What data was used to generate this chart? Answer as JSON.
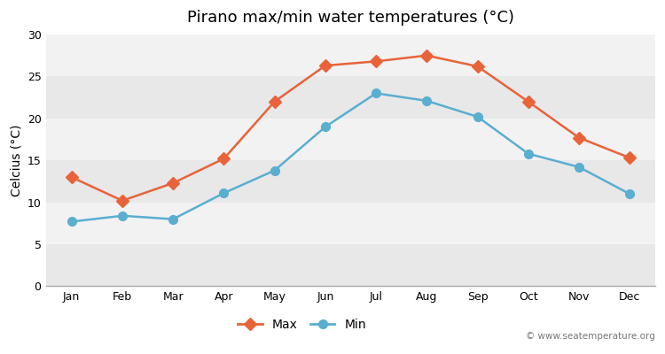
{
  "title": "Pirano max/min water temperatures (°C)",
  "ylabel": "Celcius (°C)",
  "months": [
    "Jan",
    "Feb",
    "Mar",
    "Apr",
    "May",
    "Jun",
    "Jul",
    "Aug",
    "Sep",
    "Oct",
    "Nov",
    "Dec"
  ],
  "max_values": [
    13.0,
    10.2,
    12.3,
    15.2,
    22.0,
    26.3,
    26.8,
    27.5,
    26.2,
    22.0,
    17.7,
    15.3
  ],
  "min_values": [
    7.7,
    8.4,
    8.0,
    11.1,
    13.8,
    19.0,
    23.0,
    22.1,
    20.2,
    15.8,
    14.2,
    11.0
  ],
  "max_color": "#e8633a",
  "min_color": "#5aaed0",
  "bg_color": "#ffffff",
  "band_color_dark": "#e8e8e8",
  "band_color_light": "#f2f2f2",
  "ylim": [
    0,
    30
  ],
  "yticks": [
    0,
    5,
    10,
    15,
    20,
    25,
    30
  ],
  "watermark": "© www.seatemperature.org",
  "legend_max": "Max",
  "legend_min": "Min",
  "title_fontsize": 13,
  "axis_label_fontsize": 10,
  "tick_fontsize": 9,
  "watermark_fontsize": 7.5
}
